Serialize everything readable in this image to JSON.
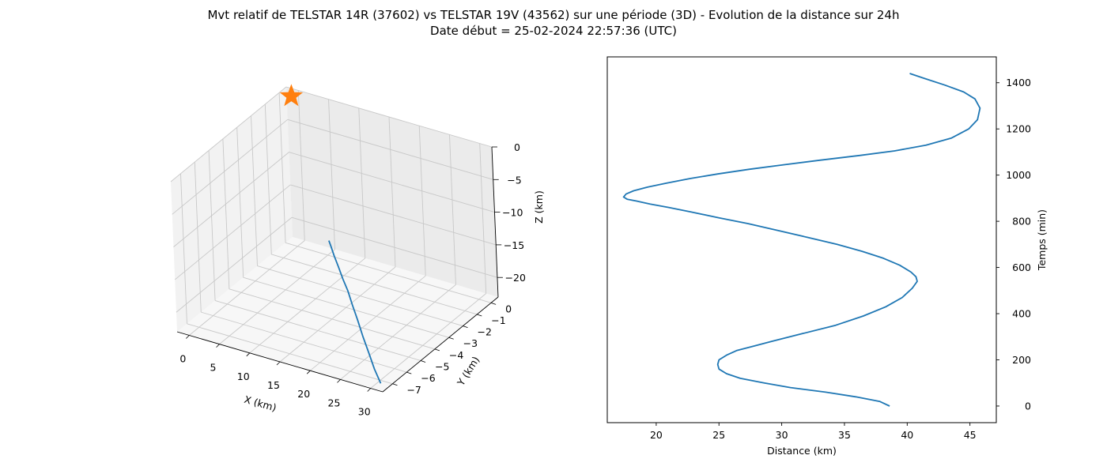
{
  "figure": {
    "title_line1": "Mvt relatif de TELSTAR 14R (37602) vs TELSTAR 19V (43562) sur une période (3D) - Evolution de la distance sur 24h",
    "title_line2": "Date début = 25-02-2024 22:57:36 (UTC)"
  },
  "colors": {
    "series": "#1f77b4",
    "marker": "#ff7f0e",
    "pane_left": "#f2f2f2",
    "pane_right": "#ebebeb",
    "pane_floor": "#f7f7f7",
    "grid": "#c8c8c8"
  },
  "chart_data": [
    {
      "type": "line3d",
      "xlabel": "X (km)",
      "ylabel": "Y (km)",
      "zlabel": "Z (km)",
      "x_ticks": [
        "0",
        "5",
        "10",
        "15",
        "20",
        "25",
        "30"
      ],
      "y_ticks": [
        "0",
        "−1",
        "−2",
        "−3",
        "−4",
        "−5",
        "−6",
        "−7"
      ],
      "z_ticks": [
        "0",
        "−5",
        "−10",
        "−15",
        "−20"
      ],
      "xlim": [
        -2,
        32
      ],
      "ylim": [
        -7.7,
        0.5
      ],
      "zlim": [
        -23,
        0
      ],
      "grid": true,
      "trajectory": {
        "x": [
          31,
          29.8,
          28.5,
          27,
          25.5,
          24,
          22.5,
          21,
          19.5,
          18,
          16.8,
          16
        ],
        "y": [
          -7.4,
          -7.3,
          -7.1,
          -6.85,
          -6.55,
          -6.25,
          -5.9,
          -5.6,
          -5.25,
          -4.9,
          -4.6,
          -4.4
        ],
        "z": [
          -22.5,
          -20.8,
          -19.1,
          -17.4,
          -15.8,
          -14.4,
          -13.3,
          -12.4,
          -11.6,
          -10.9,
          -10.3,
          -10
        ]
      },
      "marker": {
        "x": 0,
        "y": 0,
        "z": 0,
        "shape": "star"
      }
    },
    {
      "type": "line",
      "xlabel": "Distance (km)",
      "ylabel": "Temps (min)",
      "x_ticks": [
        "20",
        "25",
        "30",
        "35",
        "40",
        "45"
      ],
      "y_ticks": [
        "0",
        "200",
        "400",
        "600",
        "800",
        "1000",
        "1200",
        "1400"
      ],
      "xlim": [
        16.1,
        47.1
      ],
      "ylim": [
        -72,
        1512
      ],
      "y_axis_side": "right",
      "grid": false,
      "series": [
        {
          "x": [
            38.6,
            37.8,
            35.9,
            33.5,
            30.7,
            28.6,
            26.7,
            25.6,
            25.0,
            24.9,
            25.0,
            25.6,
            26.4,
            27.8,
            29.2,
            31.4,
            34.3,
            36.5,
            38.3,
            39.6,
            40.4,
            40.8,
            40.7,
            40.3,
            39.4,
            38.1,
            36.4,
            34.4,
            32.1,
            29.7,
            27.3,
            25.0,
            22.8,
            21.0,
            19.5,
            18.4,
            17.7,
            17.4,
            17.6,
            18.2,
            19.3,
            20.8,
            22.7,
            24.9,
            27.4,
            30.2,
            33.1,
            36.2,
            39.0,
            41.5,
            43.5,
            44.9,
            45.6,
            45.8,
            45.4,
            44.5,
            43.0,
            41.3,
            40.2
          ],
          "y": [
            0,
            20,
            40,
            60,
            80,
            100,
            120,
            140,
            160,
            180,
            200,
            220,
            240,
            260,
            280,
            310,
            350,
            390,
            430,
            470,
            510,
            540,
            560,
            580,
            610,
            640,
            670,
            700,
            730,
            760,
            790,
            815,
            840,
            860,
            875,
            888,
            895,
            905,
            918,
            932,
            948,
            965,
            985,
            1005,
            1025,
            1045,
            1065,
            1085,
            1105,
            1130,
            1160,
            1200,
            1240,
            1290,
            1330,
            1360,
            1390,
            1420,
            1440
          ]
        }
      ]
    }
  ]
}
